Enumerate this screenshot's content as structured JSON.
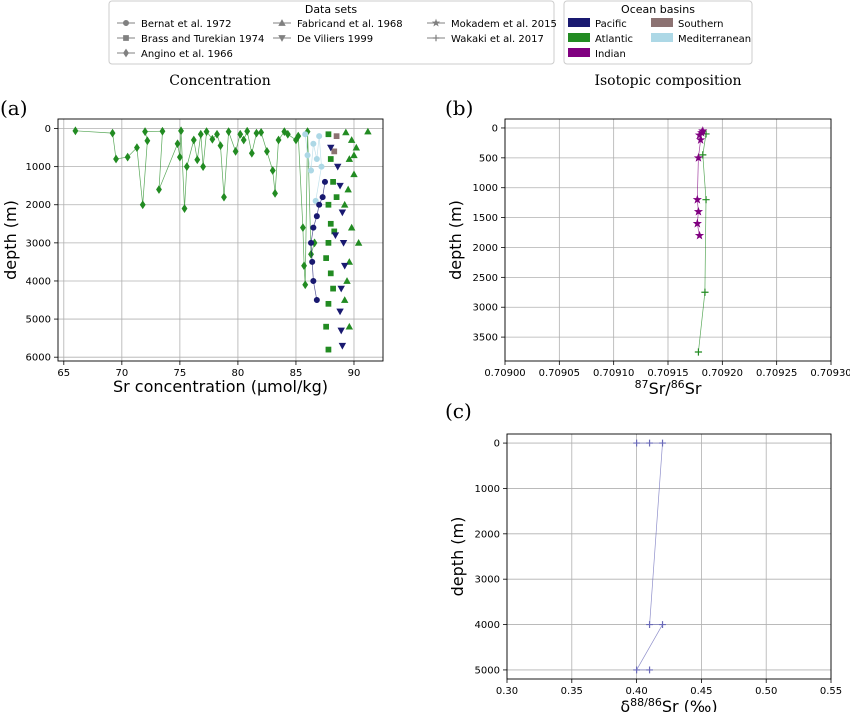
{
  "sections": {
    "left": "Concentration",
    "right": "Isotopic composition"
  },
  "legends": {
    "datasets": {
      "title": "Data sets",
      "items": [
        {
          "label": "Bernat et al. 1972",
          "marker": "circle"
        },
        {
          "label": "Brass and Turekian 1974",
          "marker": "square"
        },
        {
          "label": "Angino et al. 1966",
          "marker": "diamond"
        },
        {
          "label": "Fabricand et al. 1968",
          "marker": "triangle-up"
        },
        {
          "label": "De Viliers 1999",
          "marker": "triangle-down"
        },
        {
          "label": "Mokadem et al. 2015",
          "marker": "star"
        },
        {
          "label": "Wakaki et al. 2017",
          "marker": "plus"
        }
      ]
    },
    "basins": {
      "title": "Ocean basins",
      "items": [
        {
          "label": "Pacific",
          "color": "#191970"
        },
        {
          "label": "Southern",
          "color": "#8c7272"
        },
        {
          "label": "Atlantic",
          "color": "#228b22"
        },
        {
          "label": "Mediterranean",
          "color": "#add8e6"
        },
        {
          "label": "Indian",
          "color": "#800080"
        }
      ]
    }
  },
  "chart_data": [
    {
      "panel": "(a)",
      "type": "scatter",
      "xlabel": "Sr concentration (μmol/kg)",
      "ylabel": "depth (m)",
      "xlim": [
        64.5,
        92.5
      ],
      "ylim": [
        6100,
        -250
      ],
      "xticks": [
        65,
        70,
        75,
        80,
        85,
        90
      ],
      "yticks": [
        0,
        1000,
        2000,
        3000,
        4000,
        5000,
        6000
      ],
      "grid": true,
      "series": [
        {
          "marker": "diamond",
          "color": "#228b22",
          "connected": true,
          "points": [
            [
              66,
              60
            ],
            [
              69.2,
              120
            ],
            [
              69.5,
              800
            ],
            [
              70.5,
              750
            ],
            [
              71.3,
              500
            ],
            [
              71.8,
              2000
            ],
            [
              72.2,
              320
            ],
            [
              72,
              80
            ],
            [
              73.5,
              70
            ],
            [
              73.2,
              1600
            ],
            [
              74.8,
              400
            ],
            [
              75,
              750
            ],
            [
              75.1,
              60
            ],
            [
              75.4,
              2100
            ],
            [
              75.6,
              1000
            ],
            [
              76.2,
              300
            ],
            [
              76.5,
              820
            ],
            [
              76.8,
              150
            ],
            [
              77,
              1000
            ],
            [
              77.3,
              80
            ],
            [
              77.8,
              280
            ],
            [
              78.2,
              150
            ],
            [
              78.5,
              450
            ],
            [
              78.8,
              1800
            ],
            [
              79.2,
              80
            ],
            [
              79.8,
              600
            ],
            [
              80.2,
              150
            ],
            [
              80.5,
              300
            ],
            [
              80.8,
              70
            ],
            [
              81.2,
              650
            ],
            [
              81.6,
              120
            ],
            [
              82,
              100
            ],
            [
              82.5,
              600
            ],
            [
              83,
              1100
            ],
            [
              83.2,
              1700
            ],
            [
              83.5,
              300
            ],
            [
              84,
              80
            ],
            [
              84.3,
              150
            ],
            [
              85,
              300
            ],
            [
              85.2,
              200
            ],
            [
              85.6,
              2600
            ],
            [
              85.7,
              3600
            ],
            [
              85.8,
              4100
            ],
            [
              86,
              80
            ],
            [
              86.3,
              3300
            ],
            [
              86.6,
              3000
            ]
          ]
        },
        {
          "marker": "circle",
          "color": "#add8e6",
          "connected": true,
          "points": [
            [
              85.8,
              150
            ],
            [
              86,
              700
            ],
            [
              86.3,
              1100
            ],
            [
              86.5,
              400
            ],
            [
              86.8,
              800
            ],
            [
              87,
              200
            ],
            [
              87.2,
              1000
            ],
            [
              86.7,
              1900
            ]
          ]
        },
        {
          "marker": "circle",
          "color": "#191970",
          "connected": true,
          "points": [
            [
              87.5,
              1400
            ],
            [
              87.3,
              1800
            ],
            [
              87,
              2000
            ],
            [
              86.8,
              2300
            ],
            [
              86.5,
              2600
            ],
            [
              86.3,
              3000
            ],
            [
              86.4,
              3500
            ],
            [
              86.5,
              4000
            ],
            [
              86.8,
              4500
            ]
          ]
        },
        {
          "marker": "square",
          "color": "#228b22",
          "connected": false,
          "points": [
            [
              87.8,
              150
            ],
            [
              88,
              800
            ],
            [
              88.2,
              1400
            ],
            [
              87.8,
              2000
            ],
            [
              88,
              2500
            ],
            [
              87.8,
              3000
            ],
            [
              87.6,
              3400
            ],
            [
              88,
              3800
            ],
            [
              88.2,
              4200
            ],
            [
              87.8,
              4600
            ],
            [
              87.6,
              5200
            ],
            [
              87.8,
              5800
            ],
            [
              88.3,
              2700
            ],
            [
              88.5,
              1800
            ]
          ]
        },
        {
          "marker": "square",
          "color": "#8c7272",
          "connected": false,
          "points": [
            [
              88.5,
              200
            ],
            [
              88.3,
              600
            ]
          ]
        },
        {
          "marker": "triangle-up",
          "color": "#228b22",
          "connected": false,
          "points": [
            [
              89.3,
              100
            ],
            [
              89.8,
              300
            ],
            [
              90.2,
              500
            ],
            [
              89.6,
              800
            ],
            [
              90,
              1200
            ],
            [
              89.5,
              1600
            ],
            [
              89.2,
              2000
            ],
            [
              89.8,
              2600
            ],
            [
              90.4,
              3000
            ],
            [
              89.6,
              3500
            ],
            [
              89.4,
              4000
            ],
            [
              89.2,
              4500
            ],
            [
              89.6,
              5200
            ],
            [
              91.2,
              80
            ],
            [
              90,
              700
            ]
          ]
        },
        {
          "marker": "triangle-down",
          "color": "#191970",
          "connected": false,
          "points": [
            [
              88,
              500
            ],
            [
              88.6,
              1000
            ],
            [
              88.8,
              1500
            ],
            [
              89,
              2200
            ],
            [
              89.1,
              3000
            ],
            [
              89.2,
              3600
            ],
            [
              88.9,
              4200
            ],
            [
              88.8,
              4800
            ],
            [
              88.9,
              5300
            ],
            [
              89,
              5700
            ],
            [
              88.4,
              2800
            ]
          ]
        }
      ]
    },
    {
      "panel": "(b)",
      "type": "line",
      "xlabel": "87Sr/86Sr",
      "ylabel": "depth (m)",
      "xlim": [
        0.709,
        0.7093
      ],
      "ylim": [
        3900,
        -150
      ],
      "xticks": [
        0.709,
        0.70905,
        0.7091,
        0.70915,
        0.7092,
        0.70925,
        0.7093
      ],
      "yticks": [
        0,
        500,
        1000,
        1500,
        2000,
        2500,
        3000,
        3500
      ],
      "grid": true,
      "series": [
        {
          "marker": "plus",
          "color": "#228b22",
          "points": [
            [
              0.709185,
              100
            ],
            [
              0.709182,
              450
            ],
            [
              0.709185,
              1200
            ],
            [
              0.709184,
              2750
            ],
            [
              0.709178,
              3750
            ]
          ]
        },
        {
          "marker": "star",
          "color": "#800080",
          "points": [
            [
              0.709182,
              50
            ],
            [
              0.709181,
              80
            ],
            [
              0.709179,
              120
            ],
            [
              0.70918,
              200
            ],
            [
              0.709178,
              500
            ],
            [
              0.709177,
              1200
            ],
            [
              0.709178,
              1400
            ],
            [
              0.709177,
              1600
            ],
            [
              0.709179,
              1800
            ]
          ]
        }
      ]
    },
    {
      "panel": "(c)",
      "type": "line",
      "xlabel": "δ88/86Sr (‰)",
      "ylabel": "depth (m)",
      "xlim": [
        0.3,
        0.55
      ],
      "ylim": [
        5200,
        -200
      ],
      "xticks": [
        0.3,
        0.35,
        0.4,
        0.45,
        0.5,
        0.55
      ],
      "yticks": [
        0,
        1000,
        2000,
        3000,
        4000,
        5000
      ],
      "grid": true,
      "series": [
        {
          "marker": "plus",
          "color": "#6a6ab8",
          "points": [
            [
              0.4,
              0
            ],
            [
              0.41,
              0
            ],
            [
              0.42,
              0
            ],
            [
              0.41,
              4000
            ],
            [
              0.42,
              4000
            ],
            [
              0.4,
              5000
            ],
            [
              0.41,
              5000
            ]
          ]
        }
      ]
    }
  ]
}
